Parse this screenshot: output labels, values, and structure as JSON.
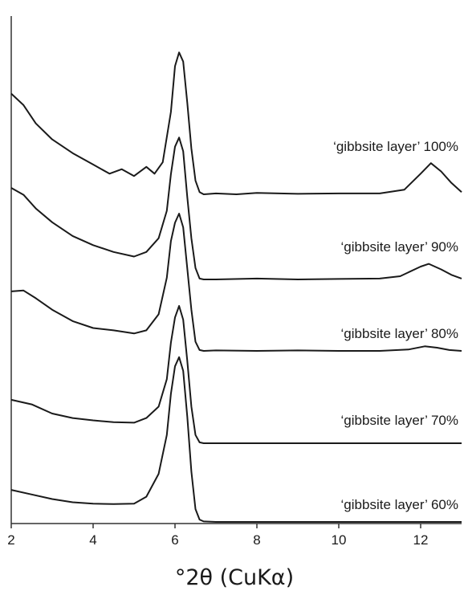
{
  "chart_data": {
    "type": "line",
    "title": "",
    "xlabel": "°2θ (CuKα)",
    "ylabel": "",
    "xlim": [
      2,
      13
    ],
    "x_ticks": [
      2,
      4,
      6,
      8,
      10,
      12
    ],
    "x_tick_labels": [
      "2",
      "4",
      "6",
      "8",
      "10",
      "12"
    ],
    "y_ticks_shown": false,
    "grid": false,
    "legend": "none",
    "series": [
      {
        "name": "‘gibbsite layer’ 100%",
        "x": [
          2.0,
          2.3,
          2.6,
          3.0,
          3.5,
          4.0,
          4.4,
          4.7,
          5.0,
          5.3,
          5.5,
          5.7,
          5.9,
          6.0,
          6.1,
          6.2,
          6.3,
          6.4,
          6.5,
          6.6,
          6.7,
          7.0,
          7.5,
          8.0,
          9.0,
          10.0,
          11.0,
          11.6,
          12.0,
          12.25,
          12.5,
          12.75,
          13.0
        ],
        "y": [
          460,
          435,
          395,
          360,
          330,
          305,
          285,
          295,
          280,
          300,
          285,
          310,
          420,
          520,
          550,
          530,
          440,
          340,
          270,
          245,
          240,
          242,
          240,
          243,
          241,
          242,
          242,
          250,
          285,
          308,
          290,
          265,
          245
        ]
      },
      {
        "name": "‘gibbsite layer’ 90%",
        "x": [
          2.0,
          2.3,
          2.6,
          3.0,
          3.5,
          4.0,
          4.5,
          5.0,
          5.3,
          5.6,
          5.8,
          5.9,
          6.0,
          6.1,
          6.2,
          6.3,
          6.4,
          6.5,
          6.6,
          6.7,
          7.0,
          8.0,
          9.0,
          10.0,
          11.0,
          11.5,
          12.0,
          12.2,
          12.5,
          12.75,
          13.0
        ],
        "y": [
          440,
          425,
          395,
          365,
          335,
          315,
          300,
          290,
          300,
          330,
          390,
          470,
          530,
          550,
          520,
          420,
          330,
          265,
          242,
          240,
          240,
          242,
          240,
          241,
          242,
          247,
          268,
          274,
          262,
          250,
          242
        ]
      },
      {
        "name": "‘gibbsite layer’ 80%",
        "x": [
          2.0,
          2.3,
          2.6,
          3.0,
          3.5,
          4.0,
          4.5,
          5.0,
          5.3,
          5.6,
          5.8,
          5.9,
          6.0,
          6.1,
          6.2,
          6.3,
          6.4,
          6.5,
          6.6,
          6.7,
          7.0,
          8.0,
          9.0,
          10.0,
          11.0,
          11.7,
          12.1,
          12.4,
          12.7,
          13.0
        ],
        "y": [
          370,
          372,
          355,
          330,
          305,
          290,
          285,
          278,
          285,
          320,
          400,
          480,
          520,
          540,
          510,
          420,
          330,
          260,
          242,
          240,
          241,
          240,
          241,
          240,
          240,
          243,
          250,
          247,
          242,
          240
        ]
      },
      {
        "name": "‘gibbsite layer’ 70%",
        "x": [
          2.0,
          2.5,
          3.0,
          3.5,
          4.0,
          4.5,
          5.0,
          5.3,
          5.6,
          5.8,
          5.9,
          6.0,
          6.1,
          6.2,
          6.3,
          6.4,
          6.5,
          6.6,
          6.7,
          7.0,
          8.0,
          9.0,
          10.0,
          11.0,
          12.0,
          13.0
        ],
        "y": [
          335,
          325,
          305,
          295,
          290,
          286,
          285,
          295,
          320,
          380,
          460,
          515,
          540,
          510,
          420,
          320,
          258,
          242,
          240,
          240,
          240,
          240,
          240,
          240,
          240,
          240
        ]
      },
      {
        "name": "‘gibbsite layer’ 60%",
        "x": [
          2.0,
          2.5,
          3.0,
          3.5,
          4.0,
          4.5,
          5.0,
          5.3,
          5.6,
          5.8,
          5.9,
          6.0,
          6.1,
          6.2,
          6.3,
          6.4,
          6.5,
          6.6,
          6.7,
          7.0,
          8.0,
          9.0,
          10.0,
          11.0,
          12.0,
          13.0
        ],
        "y": [
          310,
          300,
          290,
          283,
          280,
          279,
          280,
          295,
          345,
          430,
          520,
          580,
          600,
          570,
          470,
          350,
          268,
          245,
          241,
          240,
          240,
          240,
          240,
          240,
          240,
          240
        ]
      }
    ]
  }
}
